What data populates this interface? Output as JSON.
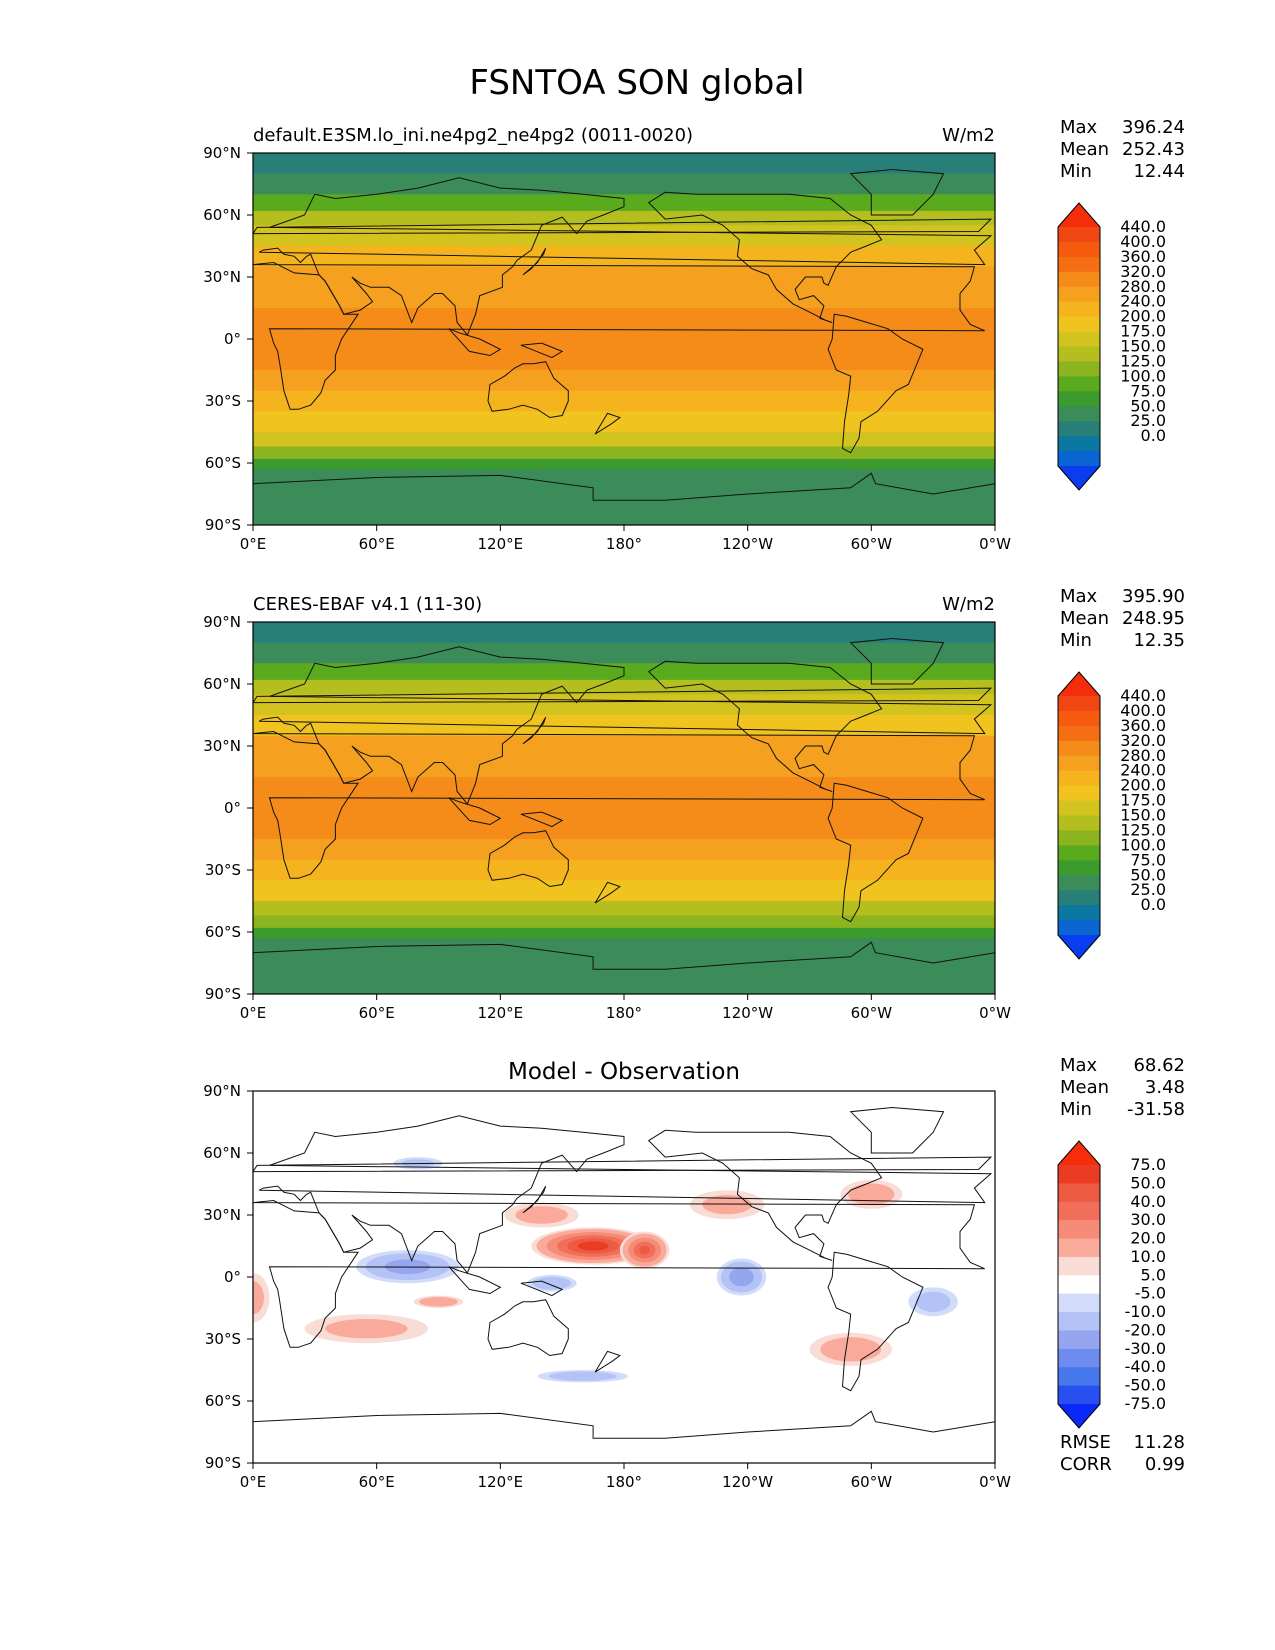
{
  "figure": {
    "title": "FSNTOA SON global"
  },
  "colors": {
    "abs_levels": [
      "#0a3cf0",
      "#0a64d2",
      "#0a78a0",
      "#287f78",
      "#3c8c5a",
      "#3c9b2d",
      "#5aaa1e",
      "#8cb41e",
      "#b4be1e",
      "#d2c31e",
      "#f0c31e",
      "#f5b41e",
      "#f5a01e",
      "#f58c19",
      "#f56e14",
      "#f55a0f",
      "#f04614",
      "#f52d0a"
    ],
    "diff_levels": [
      "#0a28fa",
      "#2850f0",
      "#4678eb",
      "#6e8cf0",
      "#96a5f0",
      "#b4c3f5",
      "#d2dcfa",
      "#ffffff",
      "#fadcd7",
      "#faaa9b",
      "#f58c78",
      "#f06e5a",
      "#eb5a41",
      "#eb3c23",
      "#f52d0a"
    ],
    "land": "#ffffff",
    "coast": "#111111"
  },
  "panels": [
    {
      "id": "test",
      "left_title": "default.E3SM.lo_ini.ne4pg2_ne4pg2 (0011-0020)",
      "right_title": "W/m2",
      "center_title": "",
      "stats": [
        {
          "label": "Max",
          "value": "396.24"
        },
        {
          "label": "Mean",
          "value": "252.43"
        },
        {
          "label": "Min",
          "value": "12.44"
        }
      ],
      "metrics": []
    },
    {
      "id": "ref",
      "left_title": "CERES-EBAF v4.1 (11-30)",
      "right_title": "W/m2",
      "center_title": "",
      "stats": [
        {
          "label": "Max",
          "value": "395.90"
        },
        {
          "label": "Mean",
          "value": "248.95"
        },
        {
          "label": "Min",
          "value": "12.35"
        }
      ],
      "metrics": []
    },
    {
      "id": "diff",
      "left_title": "",
      "right_title": "",
      "center_title": "Model - Observation",
      "stats": [
        {
          "label": "Max",
          "value": "68.62"
        },
        {
          "label": "Mean",
          "value": "3.48"
        },
        {
          "label": "Min",
          "value": "-31.58"
        }
      ],
      "metrics": [
        {
          "label": "RMSE",
          "value": "11.28"
        },
        {
          "label": "CORR",
          "value": "0.99"
        }
      ]
    }
  ],
  "chart_data": [
    {
      "type": "heatmap",
      "title": "default.E3SM.lo_ini.ne4pg2_ne4pg2 (0011-0020)",
      "units": "W/m2",
      "lon_ticks": [
        "0°E",
        "60°E",
        "120°E",
        "180°",
        "120°W",
        "60°W",
        "0°W"
      ],
      "lat_ticks": [
        "90°N",
        "60°N",
        "30°N",
        "0°",
        "30°S",
        "60°S",
        "90°S"
      ],
      "xlim": [
        0,
        360
      ],
      "ylim": [
        -90,
        90
      ],
      "colorbar_levels": [
        0,
        25,
        50,
        75,
        100,
        125,
        150,
        175,
        200,
        240,
        280,
        320,
        360,
        400,
        440
      ],
      "colorbar_labels": [
        "440.0",
        "400.0",
        "360.0",
        "320.0",
        "280.0",
        "240.0",
        "200.0",
        "175.0",
        "150.0",
        "125.0",
        "100.0",
        "75.0",
        "50.0",
        "25.0",
        "0.0"
      ],
      "zonal_profile": {
        "lat": [
          90,
          80,
          70,
          62,
          55,
          45,
          35,
          25,
          15,
          5,
          -5,
          -15,
          -25,
          -35,
          -45,
          -52,
          -58,
          -63,
          -68,
          -75,
          -90
        ],
        "value": [
          12,
          40,
          95,
          140,
          175,
          215,
          265,
          305,
          325,
          330,
          335,
          325,
          300,
          255,
          200,
          155,
          110,
          75,
          60,
          50,
          50
        ]
      }
    },
    {
      "type": "heatmap",
      "title": "CERES-EBAF v4.1 (11-30)",
      "units": "W/m2",
      "lon_ticks": [
        "0°E",
        "60°E",
        "120°E",
        "180°",
        "120°W",
        "60°W",
        "0°W"
      ],
      "lat_ticks": [
        "90°N",
        "60°N",
        "30°N",
        "0°",
        "30°S",
        "60°S",
        "90°S"
      ],
      "xlim": [
        0,
        360
      ],
      "ylim": [
        -90,
        90
      ],
      "colorbar_levels": [
        0,
        25,
        50,
        75,
        100,
        125,
        150,
        175,
        200,
        240,
        280,
        320,
        360,
        400,
        440
      ],
      "colorbar_labels": [
        "440.0",
        "400.0",
        "360.0",
        "320.0",
        "280.0",
        "240.0",
        "200.0",
        "175.0",
        "150.0",
        "125.0",
        "100.0",
        "75.0",
        "50.0",
        "25.0",
        "0.0"
      ],
      "zonal_profile": {
        "lat": [
          90,
          80,
          70,
          62,
          55,
          45,
          35,
          25,
          15,
          5,
          -5,
          -15,
          -25,
          -35,
          -45,
          -52,
          -58,
          -63,
          -68,
          -75,
          -90
        ],
        "value": [
          12,
          40,
          92,
          135,
          170,
          210,
          260,
          300,
          320,
          325,
          330,
          320,
          295,
          250,
          195,
          150,
          108,
          72,
          58,
          50,
          50
        ]
      }
    },
    {
      "type": "heatmap",
      "title": "Model - Observation",
      "lon_ticks": [
        "0°E",
        "60°E",
        "120°E",
        "180°",
        "120°W",
        "60°W",
        "0°W"
      ],
      "lat_ticks": [
        "90°N",
        "60°N",
        "30°N",
        "0°",
        "30°S",
        "60°S",
        "90°S"
      ],
      "xlim": [
        0,
        360
      ],
      "ylim": [
        -90,
        90
      ],
      "colorbar_levels": [
        -75,
        -50,
        -40,
        -30,
        -20,
        -10,
        -5,
        5,
        10,
        20,
        30,
        40,
        50,
        75
      ],
      "colorbar_labels": [
        "75.0",
        "50.0",
        "40.0",
        "30.0",
        "20.0",
        "10.0",
        "5.0",
        "-5.0",
        "-10.0",
        "-20.0",
        "-30.0",
        "-40.0",
        "-50.0",
        "-75.0"
      ],
      "anomalies": [
        {
          "lon": 165,
          "lat": 15,
          "rx": 30,
          "ry": 9,
          "value": 55
        },
        {
          "lon": 190,
          "lat": 13,
          "rx": 12,
          "ry": 9,
          "value": 40
        },
        {
          "lon": 140,
          "lat": 30,
          "rx": 18,
          "ry": 6,
          "value": 12
        },
        {
          "lon": 75,
          "lat": 5,
          "rx": 25,
          "ry": 8,
          "value": -22
        },
        {
          "lon": 145,
          "lat": -3,
          "rx": 12,
          "ry": 4,
          "value": -18
        },
        {
          "lon": 237,
          "lat": 0,
          "rx": 12,
          "ry": 9,
          "value": -25
        },
        {
          "lon": 330,
          "lat": -12,
          "rx": 12,
          "ry": 7,
          "value": -12
        },
        {
          "lon": 160,
          "lat": -48,
          "rx": 22,
          "ry": 3,
          "value": -15
        },
        {
          "lon": 55,
          "lat": -25,
          "rx": 30,
          "ry": 7,
          "value": 10
        },
        {
          "lon": 290,
          "lat": -35,
          "rx": 20,
          "ry": 8,
          "value": 14
        },
        {
          "lon": 300,
          "lat": 40,
          "rx": 15,
          "ry": 7,
          "value": 15
        },
        {
          "lon": 230,
          "lat": 35,
          "rx": 18,
          "ry": 7,
          "value": 10
        },
        {
          "lon": 0,
          "lat": -10,
          "rx": 8,
          "ry": 12,
          "value": 10
        },
        {
          "lon": 80,
          "lat": 55,
          "rx": 12,
          "ry": 3,
          "value": -10
        },
        {
          "lon": 90,
          "lat": -12,
          "rx": 12,
          "ry": 3,
          "value": 18
        }
      ]
    }
  ]
}
